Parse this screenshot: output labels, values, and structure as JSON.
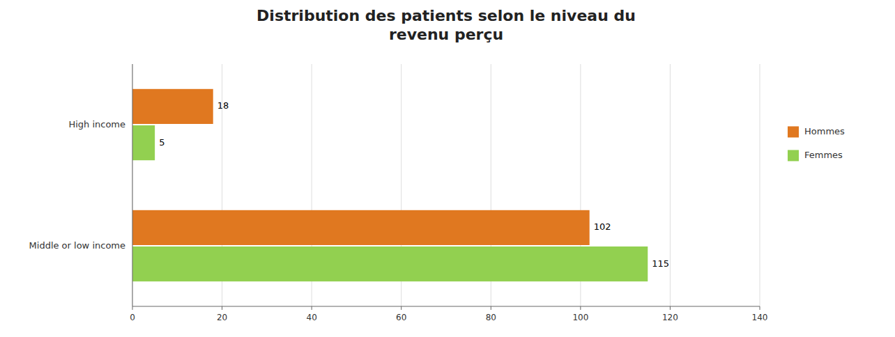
{
  "chart_data": {
    "type": "bar",
    "orientation": "horizontal",
    "title": "Distribution des patients selon le niveau du\nrevenu perçu",
    "categories": [
      "Middle or low income",
      "High income"
    ],
    "series": [
      {
        "name": "Hommes",
        "color": "#E07820",
        "values": [
          102,
          18
        ]
      },
      {
        "name": "Femmes",
        "color": "#92D050",
        "values": [
          115,
          5
        ]
      }
    ],
    "xlim": [
      0,
      140
    ],
    "xticks": [
      0,
      20,
      40,
      60,
      80,
      100,
      120,
      140
    ],
    "grid": true,
    "data_labels": true,
    "legend": "right"
  }
}
